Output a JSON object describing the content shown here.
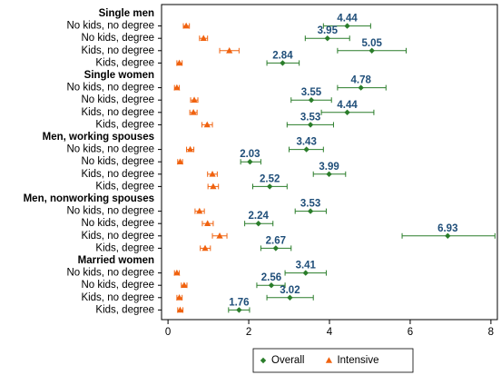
{
  "chart_data": {
    "type": "dot_errorbar",
    "groups": [
      {
        "name": "Single men",
        "categories": [
          "No kids, no degree",
          "No kids, degree",
          "Kids, no degree",
          "Kids, degree"
        ]
      },
      {
        "name": "Single women",
        "categories": [
          "No kids, no degree",
          "No kids, degree",
          "Kids, no degree",
          "Kids, degree"
        ]
      },
      {
        "name": "Men, working spouses",
        "categories": [
          "No kids, no degree",
          "No kids, degree",
          "Kids, no degree",
          "Kids, degree"
        ]
      },
      {
        "name": "Men, nonworking spouses",
        "categories": [
          "No kids, no degree",
          "No kids, degree",
          "Kids, no degree",
          "Kids, degree"
        ]
      },
      {
        "name": "Married women",
        "categories": [
          "No kids, no degree",
          "No kids, degree",
          "Kids, no degree",
          "Kids, degree"
        ]
      }
    ],
    "series": [
      {
        "name": "Overall",
        "color": "#2a7d2a",
        "marker": "diamond",
        "show_labels": true,
        "label_color": "#1f4e79",
        "values": [
          4.44,
          3.95,
          5.05,
          2.84,
          4.78,
          3.55,
          4.44,
          3.53,
          3.43,
          2.03,
          3.99,
          2.52,
          3.53,
          2.24,
          6.93,
          2.67,
          3.41,
          2.56,
          3.02,
          1.76
        ],
        "low": [
          3.85,
          3.4,
          4.2,
          2.45,
          4.2,
          3.05,
          3.8,
          2.95,
          3.0,
          1.8,
          3.6,
          2.1,
          3.15,
          1.9,
          5.8,
          2.3,
          2.9,
          2.2,
          2.45,
          1.5
        ],
        "high": [
          5.02,
          4.5,
          5.9,
          3.25,
          5.4,
          4.05,
          5.1,
          4.1,
          3.85,
          2.3,
          4.4,
          2.95,
          3.92,
          2.6,
          8.1,
          3.05,
          3.92,
          2.9,
          3.6,
          2.02
        ]
      },
      {
        "name": "Intensive",
        "color": "#f0620f",
        "marker": "triangle",
        "show_labels": false,
        "values": [
          0.45,
          0.88,
          1.52,
          0.28,
          0.22,
          0.65,
          0.63,
          0.97,
          0.55,
          0.3,
          1.1,
          1.12,
          0.78,
          0.98,
          1.28,
          0.92,
          0.22,
          0.4,
          0.28,
          0.3
        ],
        "low": [
          0.38,
          0.78,
          1.28,
          0.22,
          0.16,
          0.56,
          0.54,
          0.84,
          0.46,
          0.24,
          0.98,
          0.99,
          0.67,
          0.85,
          1.1,
          0.8,
          0.16,
          0.33,
          0.22,
          0.24
        ],
        "high": [
          0.53,
          0.98,
          1.76,
          0.35,
          0.28,
          0.74,
          0.72,
          1.1,
          0.64,
          0.36,
          1.22,
          1.25,
          0.9,
          1.12,
          1.46,
          1.05,
          0.28,
          0.47,
          0.35,
          0.37
        ]
      }
    ],
    "xlim": [
      -0.16,
      8.16
    ],
    "xticks": [
      0,
      2,
      4,
      6,
      8
    ],
    "legend": "bottom"
  }
}
